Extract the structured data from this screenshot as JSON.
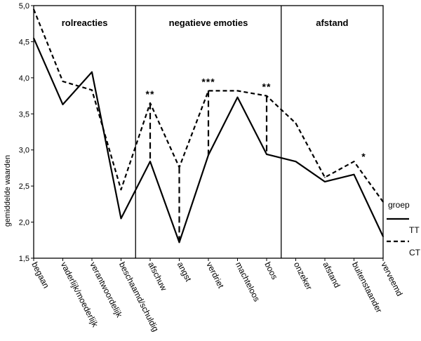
{
  "chart_data": {
    "type": "line",
    "ylabel": "gemiddelde waarden",
    "ylim": [
      1.5,
      5.0
    ],
    "yticks": [
      "1,5",
      "2,0",
      "2,5",
      "3,0",
      "3,5",
      "4,0",
      "4,5",
      "5,0"
    ],
    "categories": [
      "begaan",
      "vaderlijk/moederlijk",
      "verantwoordelijk",
      "beschaamd/schuldig",
      "afschuw",
      "angst",
      "verdriet",
      "machteloos",
      "boos",
      "onzeker",
      "afstand",
      "buitenstaander",
      "verveemd"
    ],
    "sections": [
      {
        "label": "rolreacties",
        "categories": [
          "begaan",
          "vaderlijk/moederlijk",
          "verantwoordelijk",
          "beschaamd/schuldig"
        ]
      },
      {
        "label": "negatieve emoties",
        "categories": [
          "afschuw",
          "angst",
          "verdriet",
          "machteloos",
          "boos"
        ]
      },
      {
        "label": "afstand",
        "categories": [
          "onzeker",
          "afstand",
          "buitenstaander",
          "verveemd"
        ]
      }
    ],
    "legend": {
      "title": "groep",
      "placement": "right"
    },
    "series": [
      {
        "name": "TT",
        "style": "solid",
        "values": [
          4.55,
          3.63,
          4.08,
          2.05,
          2.84,
          1.72,
          2.93,
          3.73,
          2.94,
          2.84,
          2.56,
          2.66,
          1.8
        ]
      },
      {
        "name": "CT",
        "style": "dashed",
        "values": [
          4.95,
          3.95,
          3.83,
          2.45,
          3.65,
          2.76,
          3.82,
          3.82,
          3.75,
          3.37,
          2.62,
          2.84,
          2.28
        ]
      }
    ],
    "significance": [
      {
        "category": "afschuw",
        "marker": "**"
      },
      {
        "category": "verdriet",
        "marker": "***"
      },
      {
        "category": "boos",
        "marker": "**"
      },
      {
        "category": "buitenstaander",
        "marker": "*"
      }
    ],
    "grid": false
  }
}
